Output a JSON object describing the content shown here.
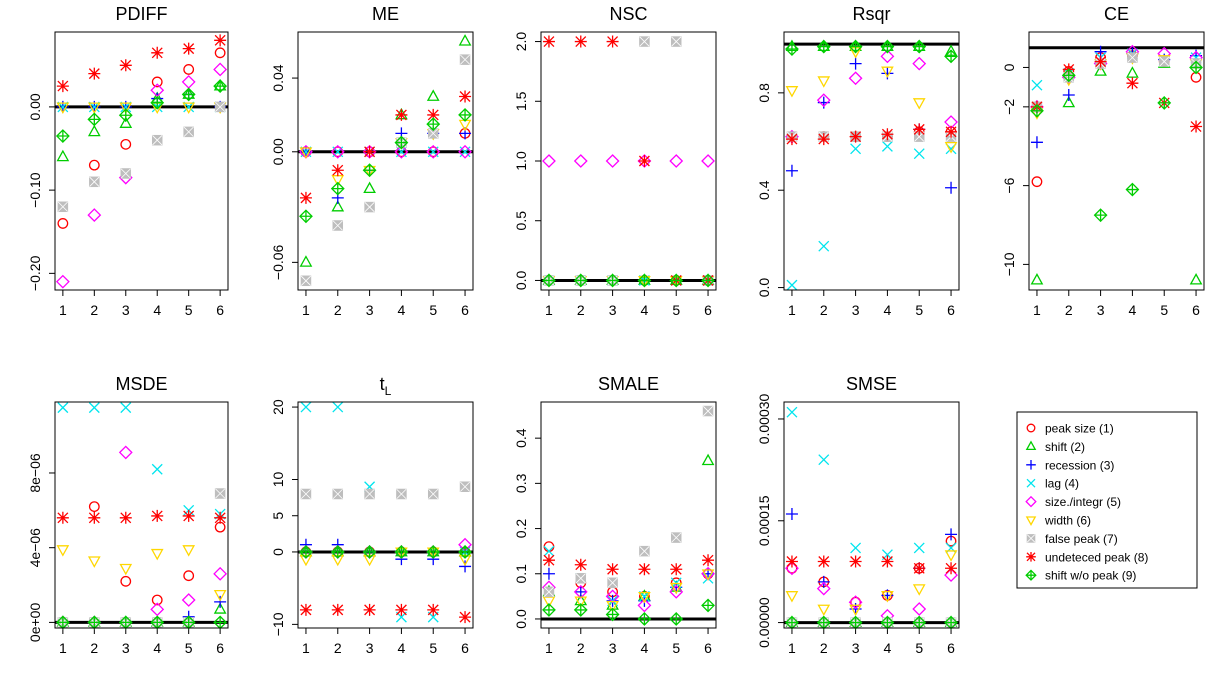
{
  "legend": {
    "entries": [
      {
        "label": "peak size (1)",
        "pch": "circle",
        "color": "#ff0000"
      },
      {
        "label": "shift (2)",
        "pch": "triangle",
        "color": "#00cd00"
      },
      {
        "label": "recession (3)",
        "pch": "plus",
        "color": "#0000ff"
      },
      {
        "label": "lag (4)",
        "pch": "cross",
        "color": "#00e5ee"
      },
      {
        "label": "size./integr (5)",
        "pch": "diamond",
        "color": "#ff00ff"
      },
      {
        "label": "width (6)",
        "pch": "triangle-down",
        "color": "#ffd700"
      },
      {
        "label": "false peak (7)",
        "pch": "square-x",
        "color": "#bebebe"
      },
      {
        "label": "undeteced peak (8)",
        "pch": "asterisk",
        "color": "#ff0000"
      },
      {
        "label": "shift w/o peak (9)",
        "pch": "diamond-plus",
        "color": "#00cd00"
      }
    ]
  },
  "chart_data": [
    {
      "type": "scatter",
      "title": "PDIFF",
      "x": [
        1,
        2,
        3,
        4,
        5,
        6
      ],
      "ylim": [
        -0.22,
        0.09
      ],
      "yticks": [
        {
          "v": -0.2,
          "label": "−0.20"
        },
        {
          "v": -0.1,
          "label": "−0.10"
        },
        {
          "v": 0,
          "label": "0.00"
        }
      ],
      "refline": 0,
      "series": [
        {
          "values": [
            -0.14,
            -0.07,
            -0.045,
            0.03,
            0.045,
            0.065
          ]
        },
        {
          "values": [
            -0.06,
            -0.03,
            -0.02,
            0.01,
            0.015,
            0.025
          ]
        },
        {
          "values": [
            0,
            0,
            0,
            0.01,
            0.015,
            0
          ]
        },
        {
          "values": [
            0,
            0,
            0,
            0,
            0,
            0
          ]
        },
        {
          "values": [
            -0.21,
            -0.13,
            -0.085,
            0.02,
            0.03,
            0.045
          ]
        },
        {
          "values": [
            0,
            0,
            0,
            0,
            0,
            0
          ]
        },
        {
          "values": [
            -0.12,
            -0.09,
            -0.08,
            -0.04,
            -0.03,
            0
          ]
        },
        {
          "values": [
            0.025,
            0.04,
            0.05,
            0.065,
            0.07,
            0.08
          ]
        },
        {
          "values": [
            -0.035,
            -0.015,
            -0.01,
            0.005,
            0.015,
            0.025
          ]
        }
      ]
    },
    {
      "type": "scatter",
      "title": "ME",
      "x": [
        1,
        2,
        3,
        4,
        5,
        6
      ],
      "ylim": [
        -0.075,
        0.065
      ],
      "yticks": [
        {
          "v": -0.06,
          "label": "−0.06"
        },
        {
          "v": 0,
          "label": "0.00"
        },
        {
          "v": 0.04,
          "label": "0.04"
        }
      ],
      "refline": 0,
      "series": [
        {
          "values": [
            0,
            0,
            0,
            0,
            0,
            0.01
          ]
        },
        {
          "values": [
            -0.06,
            -0.03,
            -0.02,
            0.02,
            0.03,
            0.06
          ]
        },
        {
          "values": [
            0,
            -0.025,
            -0.01,
            0.01,
            0.01,
            0.01
          ]
        },
        {
          "values": [
            0,
            0,
            0,
            0,
            0,
            0
          ]
        },
        {
          "values": [
            0,
            0,
            0,
            0,
            0,
            0
          ]
        },
        {
          "values": [
            0,
            -0.015,
            -0.01,
            0.005,
            0.01,
            0.015
          ]
        },
        {
          "values": [
            -0.07,
            -0.04,
            -0.03,
            0.005,
            0.01,
            0.05
          ]
        },
        {
          "values": [
            -0.025,
            -0.01,
            0,
            0.02,
            0.02,
            0.03
          ]
        },
        {
          "values": [
            -0.035,
            -0.02,
            -0.01,
            0.005,
            0.015,
            0.02
          ]
        }
      ]
    },
    {
      "type": "scatter",
      "title": "NSC",
      "x": [
        1,
        2,
        3,
        4,
        5,
        6
      ],
      "ylim": [
        -0.08,
        2.08
      ],
      "yticks": [
        {
          "v": 0,
          "label": "0.0"
        },
        {
          "v": 0.5,
          "label": "0.5"
        },
        {
          "v": 1,
          "label": "1.0"
        },
        {
          "v": 1.5,
          "label": "1.5"
        },
        {
          "v": 2,
          "label": "2.0"
        }
      ],
      "refline": 0,
      "series": [
        {
          "values": [
            0,
            0,
            0,
            0,
            0,
            0
          ]
        },
        {
          "values": [
            0,
            0,
            0,
            0,
            0,
            0
          ]
        },
        {
          "values": [
            0,
            0,
            0,
            0,
            0,
            0
          ]
        },
        {
          "values": [
            0,
            0,
            0,
            0,
            0,
            0
          ]
        },
        {
          "values": [
            1,
            1,
            1,
            1,
            1,
            1
          ]
        },
        {
          "values": [
            0,
            0,
            0,
            0,
            0,
            0
          ]
        },
        {
          "values": [
            0,
            0,
            0,
            2,
            2,
            0
          ]
        },
        {
          "values": [
            2,
            2,
            2,
            1,
            0,
            0
          ]
        },
        {
          "values": [
            0,
            0,
            0,
            0,
            0,
            0
          ]
        }
      ]
    },
    {
      "type": "scatter",
      "title": "Rsqr",
      "x": [
        1,
        2,
        3,
        4,
        5,
        6
      ],
      "ylim": [
        -0.01,
        1.05
      ],
      "yticks": [
        {
          "v": 0,
          "label": "0.0"
        },
        {
          "v": 0.4,
          "label": "0.4"
        },
        {
          "v": 0.8,
          "label": "0.8"
        }
      ],
      "refline": 1,
      "series": [
        {
          "values": [
            0.62,
            0.62,
            0.62,
            0.62,
            0.64,
            0.64
          ]
        },
        {
          "values": [
            0.99,
            0.99,
            0.99,
            0.99,
            0.99,
            0.97
          ]
        },
        {
          "values": [
            0.48,
            0.76,
            0.92,
            0.88,
            0.65,
            0.41
          ]
        },
        {
          "values": [
            0.01,
            0.17,
            0.57,
            0.58,
            0.55,
            0.57
          ]
        },
        {
          "values": [
            0.62,
            0.77,
            0.86,
            0.95,
            0.92,
            0.68
          ]
        },
        {
          "values": [
            0.81,
            0.85,
            0.97,
            0.89,
            0.76,
            0.58
          ]
        },
        {
          "values": [
            0.62,
            0.62,
            0.62,
            0.62,
            0.62,
            0.62
          ]
        },
        {
          "values": [
            0.61,
            0.61,
            0.62,
            0.63,
            0.65,
            0.64
          ]
        },
        {
          "values": [
            0.98,
            0.99,
            0.99,
            0.99,
            0.99,
            0.95
          ]
        }
      ]
    },
    {
      "type": "scatter",
      "title": "CE",
      "x": [
        1,
        2,
        3,
        4,
        5,
        6
      ],
      "ylim": [
        -11.3,
        1.8
      ],
      "yticks": [
        {
          "v": -10,
          "label": "−10"
        },
        {
          "v": -6,
          "label": "−6"
        },
        {
          "v": -2,
          "label": "−2"
        },
        {
          "v": 0,
          "label": "0"
        }
      ],
      "refline": 1,
      "series": [
        {
          "values": [
            -5.8,
            -0.2,
            0.5,
            0.6,
            0.3,
            -0.5
          ]
        },
        {
          "values": [
            -10.8,
            -1.8,
            -0.2,
            -0.3,
            0.2,
            -10.8
          ]
        },
        {
          "values": [
            -3.8,
            -1.4,
            0.8,
            0.7,
            0.4,
            0.6
          ]
        },
        {
          "values": [
            -0.9,
            -0.3,
            0.5,
            0.7,
            0.4,
            0.5
          ]
        },
        {
          "values": [
            -2,
            -0.5,
            0.2,
            0.8,
            0.7,
            0.5
          ]
        },
        {
          "values": [
            -2.3,
            -0.6,
            0.2,
            0.5,
            0.4,
            0.2
          ]
        },
        {
          "values": [
            -2,
            -0.5,
            0.2,
            0.5,
            0.3,
            0.2
          ]
        },
        {
          "values": [
            -2,
            -0.1,
            0.3,
            -0.8,
            -1.8,
            -3
          ]
        },
        {
          "values": [
            -2.2,
            -0.4,
            -7.5,
            -6.2,
            -1.8,
            0
          ]
        }
      ]
    },
    {
      "type": "scatter",
      "title": "MSDE",
      "x": [
        1,
        2,
        3,
        4,
        5,
        6
      ],
      "ylim": [
        -3e-07,
        1.18e-05
      ],
      "yticks": [
        {
          "v": 0,
          "label": "0e+00"
        },
        {
          "v": 4e-06,
          "label": "4e−06"
        },
        {
          "v": 8e-06,
          "label": "8e−06"
        }
      ],
      "refline": 0,
      "series": [
        {
          "values": [
            0,
            6.2e-06,
            2.2e-06,
            1.2e-06,
            2.5e-06,
            5.1e-06
          ]
        },
        {
          "values": [
            0,
            0,
            0,
            0,
            0,
            7e-07
          ]
        },
        {
          "values": [
            0,
            0,
            0,
            0,
            3e-07,
            1.1e-06
          ]
        },
        {
          "values": [
            1.15e-05,
            1.15e-05,
            1.15e-05,
            8.2e-06,
            6e-06,
            5.8e-06
          ]
        },
        {
          "values": [
            0,
            0,
            9.1e-06,
            7e-07,
            1.2e-06,
            2.6e-06
          ]
        },
        {
          "values": [
            3.9e-06,
            3.3e-06,
            2.9e-06,
            3.7e-06,
            3.9e-06,
            1.5e-06
          ]
        },
        {
          "values": [
            0,
            0,
            0,
            0,
            0,
            6.9e-06
          ]
        },
        {
          "values": [
            5.6e-06,
            5.6e-06,
            5.6e-06,
            5.7e-06,
            5.7e-06,
            5.6e-06
          ]
        },
        {
          "values": [
            0,
            0,
            0,
            0,
            0,
            0
          ]
        }
      ]
    },
    {
      "type": "scatter",
      "title": "t",
      "title_sub": "L",
      "x": [
        1,
        2,
        3,
        4,
        5,
        6
      ],
      "ylim": [
        -10.5,
        20.7
      ],
      "yticks": [
        {
          "v": -10,
          "label": "−10"
        },
        {
          "v": 0,
          "label": "0"
        },
        {
          "v": 5,
          "label": "5"
        },
        {
          "v": 10,
          "label": "10"
        },
        {
          "v": 20,
          "label": "20"
        }
      ],
      "refline": 0,
      "series": [
        {
          "values": [
            0,
            0,
            0,
            0,
            0,
            0
          ]
        },
        {
          "values": [
            0,
            0,
            0,
            0,
            0,
            0
          ]
        },
        {
          "values": [
            1,
            1,
            0,
            -1,
            -1,
            -2
          ]
        },
        {
          "values": [
            20,
            20,
            9,
            -9,
            -9,
            0
          ]
        },
        {
          "values": [
            0,
            0,
            0,
            0,
            0,
            1
          ]
        },
        {
          "values": [
            -1,
            -1,
            -1,
            0,
            0,
            -1
          ]
        },
        {
          "values": [
            8,
            8,
            8,
            8,
            8,
            9
          ]
        },
        {
          "values": [
            -8,
            -8,
            -8,
            -8,
            -8,
            -9
          ]
        },
        {
          "values": [
            0,
            0,
            0,
            0,
            0,
            0
          ]
        }
      ]
    },
    {
      "type": "scatter",
      "title": "SMALE",
      "x": [
        1,
        2,
        3,
        4,
        5,
        6
      ],
      "ylim": [
        -0.02,
        0.48
      ],
      "yticks": [
        {
          "v": 0,
          "label": "0.0"
        },
        {
          "v": 0.1,
          "label": "0.1"
        },
        {
          "v": 0.2,
          "label": "0.2"
        },
        {
          "v": 0.3,
          "label": "0.3"
        },
        {
          "v": 0.4,
          "label": "0.4"
        }
      ],
      "refline": 0,
      "series": [
        {
          "values": [
            0.16,
            0.08,
            0.06,
            0.05,
            0.08,
            0.1
          ]
        },
        {
          "values": [
            0.06,
            0.04,
            0.03,
            0.05,
            0.07,
            0.35
          ]
        },
        {
          "values": [
            0.1,
            0.06,
            0.04,
            0.04,
            0.07,
            0.1
          ]
        },
        {
          "values": [
            0.15,
            0.09,
            0.04,
            0.05,
            0.08,
            0.09
          ]
        },
        {
          "values": [
            0.07,
            0.06,
            0.05,
            0.03,
            0.06,
            0.1
          ]
        },
        {
          "values": [
            0.04,
            0.04,
            0.03,
            0.05,
            0.07,
            0.1
          ]
        },
        {
          "values": [
            0.06,
            0.09,
            0.08,
            0.15,
            0.18,
            0.46
          ]
        },
        {
          "values": [
            0.13,
            0.12,
            0.11,
            0.11,
            0.11,
            0.13
          ]
        },
        {
          "values": [
            0.02,
            0.02,
            0.01,
            0,
            0,
            0.03
          ]
        }
      ]
    },
    {
      "type": "scatter",
      "title": "SMSE",
      "x": [
        1,
        2,
        3,
        4,
        5,
        6
      ],
      "ylim": [
        -8e-06,
        0.000325
      ],
      "yticks": [
        {
          "v": 0,
          "label": "0.00000"
        },
        {
          "v": 0.00015,
          "label": "0.00015"
        },
        {
          "v": 0.0003,
          "label": "0.00030"
        }
      ],
      "refline": 0,
      "series": [
        {
          "values": [
            8e-05,
            6e-05,
            3e-05,
            4e-05,
            8e-05,
            0.00012
          ]
        },
        {
          "values": [
            0,
            0,
            0,
            0,
            0,
            0
          ]
        },
        {
          "values": [
            0.00016,
            6e-05,
            2e-05,
            4e-05,
            8e-05,
            0.00013
          ]
        },
        {
          "values": [
            0.00031,
            0.00024,
            0.00011,
            0.0001,
            0.00011,
            0.00011
          ]
        },
        {
          "values": [
            8e-05,
            5e-05,
            3e-05,
            1e-05,
            2e-05,
            7e-05
          ]
        },
        {
          "values": [
            4e-05,
            2e-05,
            2e-05,
            4e-05,
            5e-05,
            0.0001
          ]
        },
        {
          "values": [
            0,
            0,
            0,
            0,
            0,
            0
          ]
        },
        {
          "values": [
            9e-05,
            9e-05,
            9e-05,
            9e-05,
            8e-05,
            8e-05
          ]
        },
        {
          "values": [
            0,
            0,
            0,
            0,
            0,
            0
          ]
        }
      ]
    }
  ]
}
